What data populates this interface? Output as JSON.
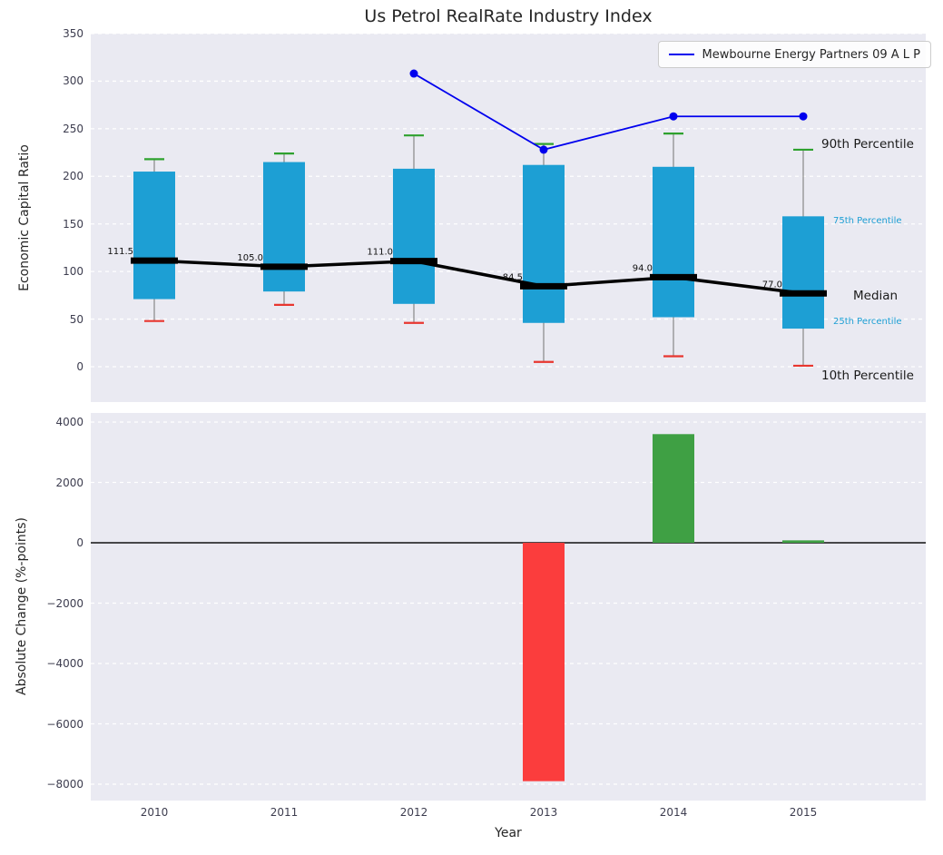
{
  "colors": {
    "panel_bg": "#eaeaf2",
    "grid": "#ffffff",
    "box": "#1d9fd4",
    "cap_top": "#2ea12e",
    "cap_bottom": "#e8362f",
    "whisker": "#888888",
    "median": "#000000",
    "company_line": "#0000ee",
    "bar_positive": "#3fa044",
    "bar_negative": "#fb3d3d",
    "annotation_blue": "#1d9fd4",
    "annotation_black": "#1a1a1a",
    "text": "#262626"
  },
  "chart_data": [
    {
      "type": "boxplot",
      "title": "Us Petrol RealRate Industry Index",
      "ylabel": "Economic Capital Ratio",
      "ylim": [
        -37,
        350
      ],
      "yticks": [
        0,
        50,
        100,
        150,
        200,
        250,
        300,
        350
      ],
      "ytick_labels": [
        "0",
        "50",
        "100",
        "150",
        "200",
        "250",
        "300",
        "350"
      ],
      "categories": [
        "2010",
        "2011",
        "2012",
        "2013",
        "2014",
        "2015"
      ],
      "percentiles": {
        "p90": [
          218,
          224,
          243,
          234,
          245,
          228
        ],
        "p75": [
          205,
          215,
          208,
          212,
          210,
          158
        ],
        "median": [
          111.5,
          105.0,
          111.0,
          84.5,
          94.0,
          77.0
        ],
        "p25": [
          71,
          79,
          66,
          46,
          52,
          40
        ],
        "p10": [
          48,
          65,
          46,
          5,
          11,
          1
        ]
      },
      "median_labels": [
        "111.5",
        "105.0",
        "111.0",
        "84.5",
        "94.0",
        "77.0"
      ],
      "series": [
        {
          "name": "Mewbourne Energy Partners 09 A L P",
          "x": [
            "2012",
            "2013",
            "2014",
            "2015"
          ],
          "y": [
            308,
            228,
            263,
            263
          ]
        }
      ],
      "legend": {
        "position": "upper right",
        "label": "Mewbourne Energy Partners 09 A L P"
      },
      "annotations": [
        {
          "label": "90th Percentile",
          "value": 233,
          "x": 905,
          "size": 13.5,
          "color": "#1a1a1a"
        },
        {
          "label": "75th Percentile",
          "value": 153,
          "x": 918,
          "size": 10,
          "color": "#1d9fd4"
        },
        {
          "label": "Median",
          "value": 74,
          "x": 940,
          "size": 13.5,
          "color": "#1a1a1a"
        },
        {
          "label": "25th Percentile",
          "value": 47,
          "x": 918,
          "size": 10,
          "color": "#1d9fd4"
        },
        {
          "label": "10th Percentile",
          "value": -10,
          "x": 905,
          "size": 13.5,
          "color": "#1a1a1a"
        }
      ],
      "grid": true
    },
    {
      "type": "bar",
      "ylabel": "Absolute Change (%-points)",
      "xlabel": "Year",
      "categories": [
        "2010",
        "2011",
        "2012",
        "2013",
        "2014",
        "2015"
      ],
      "values": [
        0,
        0,
        0,
        -7900,
        3600,
        80
      ],
      "ylim": [
        -8550,
        4300
      ],
      "yticks": [
        4000,
        2000,
        0,
        -2000,
        -4000,
        -6000,
        -8000
      ],
      "ytick_labels": [
        "4000",
        "2000",
        "0",
        "−2000",
        "−4000",
        "−6000",
        "−8000"
      ],
      "zero_line": true,
      "grid": true
    }
  ]
}
